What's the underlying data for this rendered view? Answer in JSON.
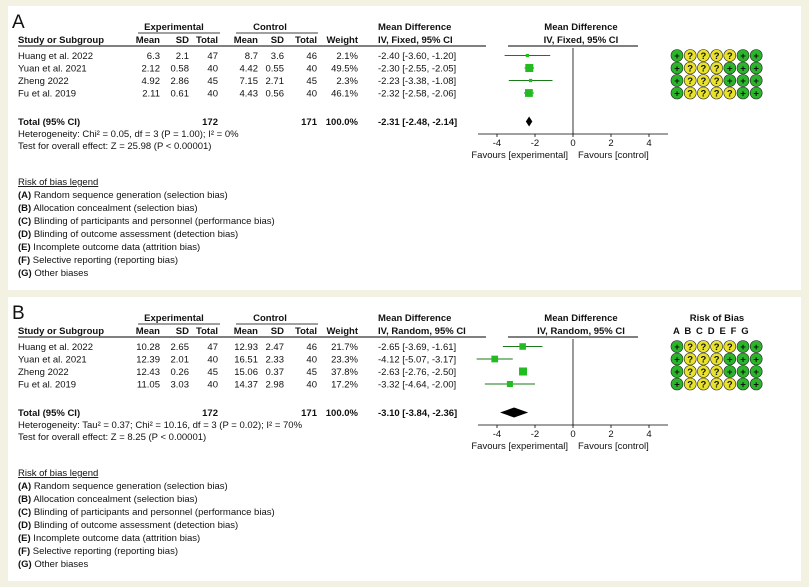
{
  "panels": [
    {
      "letter": "A",
      "headers": {
        "study": "Study or Subgroup",
        "experimental": "Experimental",
        "control": "Control",
        "mean": "Mean",
        "sd": "SD",
        "total": "Total",
        "weight": "Weight",
        "md": "Mean Difference",
        "md_method": "IV, Fixed, 95% CI",
        "plot_title": "Mean Difference",
        "plot_method": "IV, Fixed, 95% CI",
        "rob_title": "",
        "rob_letters": ""
      },
      "rows": [
        {
          "study": "Huang et al. 2022",
          "e_mean": "6.3",
          "e_sd": "2.1",
          "e_total": "47",
          "c_mean": "8.7",
          "c_sd": "3.6",
          "c_total": "46",
          "weight": "2.1%",
          "ci_text": "-2.40 [-3.60, -1.20]",
          "md": -2.4,
          "lo": -3.6,
          "hi": -1.2,
          "w": 2.1,
          "rob": [
            {
              "s": "+",
              "c": "#2bb52b"
            },
            {
              "s": "?",
              "c": "#e8e22a"
            },
            {
              "s": "?",
              "c": "#e8e22a"
            },
            {
              "s": "?",
              "c": "#e8e22a"
            },
            {
              "s": "?",
              "c": "#e8e22a"
            },
            {
              "s": "+",
              "c": "#2bb52b"
            },
            {
              "s": "+",
              "c": "#2bb52b"
            }
          ]
        },
        {
          "study": "Yuan et al. 2021",
          "e_mean": "2.12",
          "e_sd": "0.58",
          "e_total": "40",
          "c_mean": "4.42",
          "c_sd": "0.55",
          "c_total": "40",
          "weight": "49.5%",
          "ci_text": "-2.30 [-2.55, -2.05]",
          "md": -2.3,
          "lo": -2.55,
          "hi": -2.05,
          "w": 49.5,
          "rob": [
            {
              "s": "+",
              "c": "#2bb52b"
            },
            {
              "s": "?",
              "c": "#e8e22a"
            },
            {
              "s": "?",
              "c": "#e8e22a"
            },
            {
              "s": "?",
              "c": "#e8e22a"
            },
            {
              "s": "+",
              "c": "#2bb52b"
            },
            {
              "s": "+",
              "c": "#2bb52b"
            },
            {
              "s": "+",
              "c": "#2bb52b"
            }
          ]
        },
        {
          "study": "Zheng 2022",
          "e_mean": "4.92",
          "e_sd": "2.86",
          "e_total": "45",
          "c_mean": "7.15",
          "c_sd": "2.71",
          "c_total": "45",
          "weight": "2.3%",
          "ci_text": "-2.23 [-3.38, -1.08]",
          "md": -2.23,
          "lo": -3.38,
          "hi": -1.08,
          "w": 2.3,
          "rob": [
            {
              "s": "+",
              "c": "#2bb52b"
            },
            {
              "s": "?",
              "c": "#e8e22a"
            },
            {
              "s": "?",
              "c": "#e8e22a"
            },
            {
              "s": "?",
              "c": "#e8e22a"
            },
            {
              "s": "+",
              "c": "#2bb52b"
            },
            {
              "s": "+",
              "c": "#2bb52b"
            },
            {
              "s": "+",
              "c": "#2bb52b"
            }
          ]
        },
        {
          "study": "Fu et al. 2019",
          "e_mean": "2.11",
          "e_sd": "0.61",
          "e_total": "40",
          "c_mean": "4.43",
          "c_sd": "0.56",
          "c_total": "40",
          "weight": "46.1%",
          "ci_text": "-2.32 [-2.58, -2.06]",
          "md": -2.32,
          "lo": -2.58,
          "hi": -2.06,
          "w": 46.1,
          "rob": [
            {
              "s": "+",
              "c": "#2bb52b"
            },
            {
              "s": "?",
              "c": "#e8e22a"
            },
            {
              "s": "?",
              "c": "#e8e22a"
            },
            {
              "s": "?",
              "c": "#e8e22a"
            },
            {
              "s": "?",
              "c": "#e8e22a"
            },
            {
              "s": "+",
              "c": "#2bb52b"
            },
            {
              "s": "+",
              "c": "#2bb52b"
            }
          ]
        }
      ],
      "total": {
        "label": "Total (95% CI)",
        "e_total": "172",
        "c_total": "171",
        "weight": "100.0%",
        "ci_text": "-2.31 [-2.48, -2.14]",
        "md": -2.31,
        "lo": -2.48,
        "hi": -2.14
      },
      "heterogeneity": "Heterogeneity: Chi² = 0.05, df = 3 (P = 1.00); I² = 0%",
      "overall": "Test for overall effect: Z = 25.98 (P < 0.00001)",
      "axis": {
        "min": -5,
        "max": 5,
        "ticks": [
          "-4",
          "-2",
          "0",
          "2",
          "4"
        ],
        "tick_values": [
          -4,
          -2,
          0,
          2,
          4
        ]
      },
      "favours_left": "Favours [experimental]",
      "favours_right": "Favours [control]"
    },
    {
      "letter": "B",
      "headers": {
        "study": "Study or Subgroup",
        "experimental": "Experimental",
        "control": "Control",
        "mean": "Mean",
        "sd": "SD",
        "total": "Total",
        "weight": "Weight",
        "md": "Mean Difference",
        "md_method": "IV, Random, 95% CI",
        "plot_title": "Mean Difference",
        "plot_method": "IV, Random, 95% CI",
        "rob_title": "Risk of Bias",
        "rob_letters": "A B C D E F G"
      },
      "rows": [
        {
          "study": "Huang et al. 2022",
          "e_mean": "10.28",
          "e_sd": "2.65",
          "e_total": "47",
          "c_mean": "12.93",
          "c_sd": "2.47",
          "c_total": "46",
          "weight": "21.7%",
          "ci_text": "-2.65 [-3.69, -1.61]",
          "md": -2.65,
          "lo": -3.69,
          "hi": -1.61,
          "w": 21.7,
          "rob": [
            {
              "s": "+",
              "c": "#2bb52b"
            },
            {
              "s": "?",
              "c": "#e8e22a"
            },
            {
              "s": "?",
              "c": "#e8e22a"
            },
            {
              "s": "?",
              "c": "#e8e22a"
            },
            {
              "s": "?",
              "c": "#e8e22a"
            },
            {
              "s": "+",
              "c": "#2bb52b"
            },
            {
              "s": "+",
              "c": "#2bb52b"
            }
          ]
        },
        {
          "study": "Yuan et al. 2021",
          "e_mean": "12.39",
          "e_sd": "2.01",
          "e_total": "40",
          "c_mean": "16.51",
          "c_sd": "2.33",
          "c_total": "40",
          "weight": "23.3%",
          "ci_text": "-4.12 [-5.07, -3.17]",
          "md": -4.12,
          "lo": -5.07,
          "hi": -3.17,
          "w": 23.3,
          "rob": [
            {
              "s": "+",
              "c": "#2bb52b"
            },
            {
              "s": "?",
              "c": "#e8e22a"
            },
            {
              "s": "?",
              "c": "#e8e22a"
            },
            {
              "s": "?",
              "c": "#e8e22a"
            },
            {
              "s": "+",
              "c": "#2bb52b"
            },
            {
              "s": "+",
              "c": "#2bb52b"
            },
            {
              "s": "+",
              "c": "#2bb52b"
            }
          ]
        },
        {
          "study": "Zheng 2022",
          "e_mean": "12.43",
          "e_sd": "0.26",
          "e_total": "45",
          "c_mean": "15.06",
          "c_sd": "0.37",
          "c_total": "45",
          "weight": "37.8%",
          "ci_text": "-2.63 [-2.76, -2.50]",
          "md": -2.63,
          "lo": -2.76,
          "hi": -2.5,
          "w": 37.8,
          "rob": [
            {
              "s": "+",
              "c": "#2bb52b"
            },
            {
              "s": "?",
              "c": "#e8e22a"
            },
            {
              "s": "?",
              "c": "#e8e22a"
            },
            {
              "s": "?",
              "c": "#e8e22a"
            },
            {
              "s": "+",
              "c": "#2bb52b"
            },
            {
              "s": "+",
              "c": "#2bb52b"
            },
            {
              "s": "+",
              "c": "#2bb52b"
            }
          ]
        },
        {
          "study": "Fu et al. 2019",
          "e_mean": "11.05",
          "e_sd": "3.03",
          "e_total": "40",
          "c_mean": "14.37",
          "c_sd": "2.98",
          "c_total": "40",
          "weight": "17.2%",
          "ci_text": "-3.32 [-4.64, -2.00]",
          "md": -3.32,
          "lo": -4.64,
          "hi": -2.0,
          "w": 17.2,
          "rob": [
            {
              "s": "+",
              "c": "#2bb52b"
            },
            {
              "s": "?",
              "c": "#e8e22a"
            },
            {
              "s": "?",
              "c": "#e8e22a"
            },
            {
              "s": "?",
              "c": "#e8e22a"
            },
            {
              "s": "?",
              "c": "#e8e22a"
            },
            {
              "s": "+",
              "c": "#2bb52b"
            },
            {
              "s": "+",
              "c": "#2bb52b"
            }
          ]
        }
      ],
      "total": {
        "label": "Total (95% CI)",
        "e_total": "172",
        "c_total": "171",
        "weight": "100.0%",
        "ci_text": "-3.10 [-3.84, -2.36]",
        "md": -3.1,
        "lo": -3.84,
        "hi": -2.36
      },
      "heterogeneity": "Heterogeneity: Tau² = 0.37; Chi² = 10.16, df = 3 (P = 0.02); I² = 70%",
      "overall": "Test for overall effect: Z = 8.25 (P < 0.00001)",
      "axis": {
        "min": -5,
        "max": 5,
        "ticks": [
          "-4",
          "-2",
          "0",
          "2",
          "4"
        ],
        "tick_values": [
          -4,
          -2,
          0,
          2,
          4
        ]
      },
      "favours_left": "Favours [experimental]",
      "favours_right": "Favours [control]"
    }
  ],
  "legend": {
    "title": "Risk of bias legend",
    "items": [
      {
        "key": "(A)",
        "text": " Random sequence generation (selection bias)"
      },
      {
        "key": "(B)",
        "text": " Allocation concealment (selection bias)"
      },
      {
        "key": "(C)",
        "text": " Blinding of participants and personnel (performance bias)"
      },
      {
        "key": "(D)",
        "text": " Blinding of outcome assessment (detection bias)"
      },
      {
        "key": "(E)",
        "text": " Incomplete outcome data (attrition bias)"
      },
      {
        "key": "(F)",
        "text": " Selective reporting (reporting bias)"
      },
      {
        "key": "(G)",
        "text": " Other biases"
      }
    ]
  },
  "colors": {
    "square": "#22bb22",
    "line": "#1a7a1a",
    "diamond": "#000000",
    "low_risk": "#2bb52b",
    "unclear": "#e8e22a"
  },
  "chart_data": [
    {
      "type": "forest",
      "categories": [
        "Huang et al. 2022",
        "Yuan et al. 2021",
        "Zheng 2022",
        "Fu et al. 2019"
      ],
      "mean_difference": [
        -2.4,
        -2.3,
        -2.23,
        -2.32
      ],
      "ci_lower": [
        -3.6,
        -2.55,
        -3.38,
        -2.58
      ],
      "ci_upper": [
        -1.2,
        -2.05,
        -1.08,
        -2.06
      ],
      "weights": [
        2.1,
        49.5,
        2.3,
        46.1
      ],
      "pooled": {
        "md": -2.31,
        "lo": -2.48,
        "hi": -2.14
      },
      "xlim": [
        -5,
        5
      ]
    },
    {
      "type": "forest",
      "categories": [
        "Huang et al. 2022",
        "Yuan et al. 2021",
        "Zheng 2022",
        "Fu et al. 2019"
      ],
      "mean_difference": [
        -2.65,
        -4.12,
        -2.63,
        -3.32
      ],
      "ci_lower": [
        -3.69,
        -5.07,
        -2.76,
        -4.64
      ],
      "ci_upper": [
        -1.61,
        -3.17,
        -2.5,
        -2.0
      ],
      "weights": [
        21.7,
        23.3,
        37.8,
        17.2
      ],
      "pooled": {
        "md": -3.1,
        "lo": -3.84,
        "hi": -2.36
      },
      "xlim": [
        -5,
        5
      ]
    }
  ]
}
